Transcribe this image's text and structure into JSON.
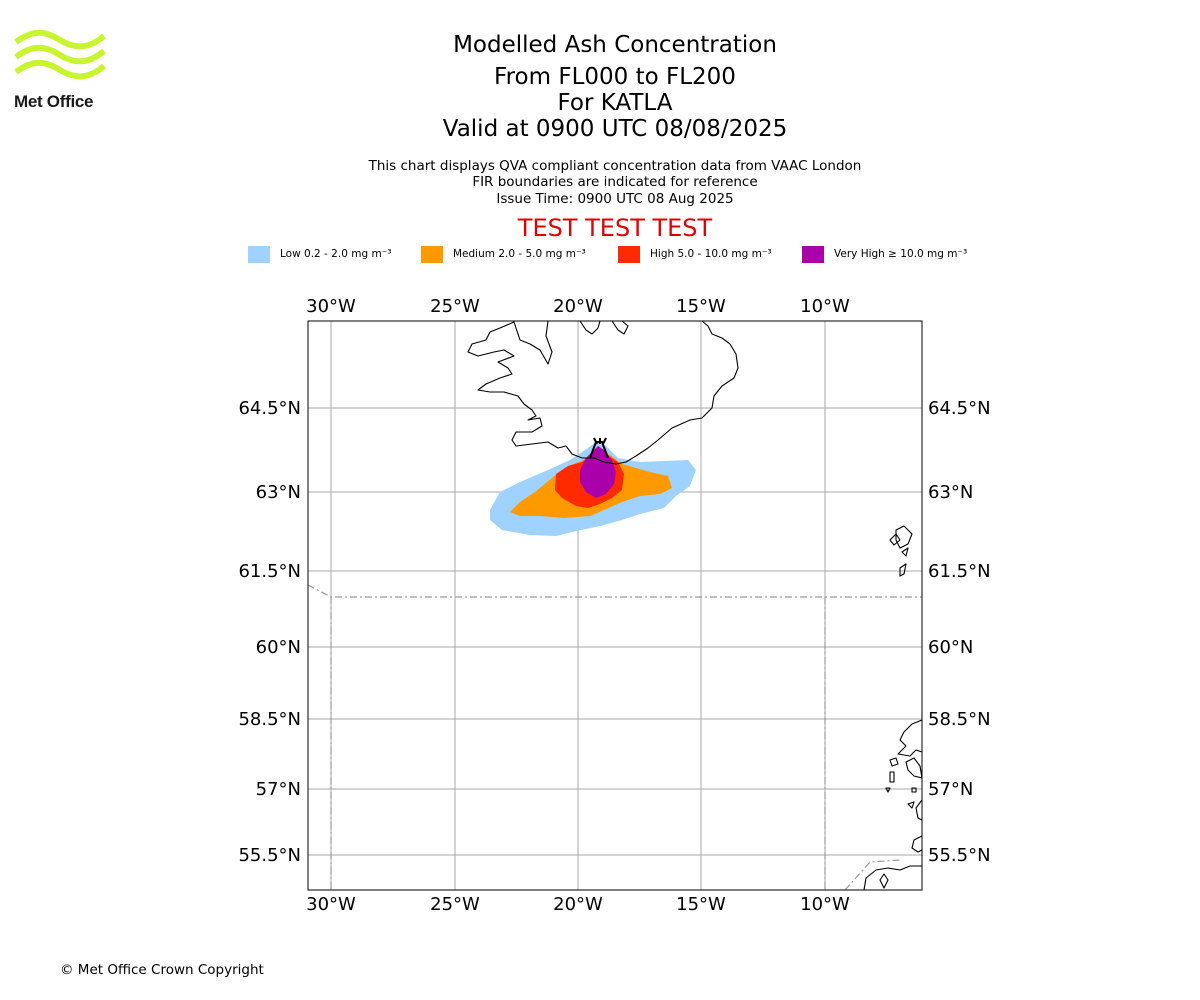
{
  "branding": {
    "logo_text": "Met Office",
    "logo_color": "#c8f52f"
  },
  "titles": {
    "main": "Modelled Ash Concentration",
    "levels": "From FL000 to FL200",
    "volcano": "For KATLA",
    "valid": "Valid at 0900 UTC 08/08/2025"
  },
  "notes": {
    "line1": "This chart displays QVA compliant concentration data from VAAC London",
    "line2": "FIR boundaries are indicated for reference",
    "line3": "Issue Time: 0900 UTC 08 Aug 2025"
  },
  "test_banner": "TEST TEST TEST",
  "legend": [
    {
      "label": "Low 0.2 - 2.0 mg m⁻³",
      "color": "#a0d2ff"
    },
    {
      "label": "Medium 2.0 - 5.0 mg m⁻³",
      "color": "#ff9900"
    },
    {
      "label": "High 5.0 - 10.0 mg m⁻³",
      "color": "#ff2a00"
    },
    {
      "label": "Very High ≥ 10.0 mg m⁻³",
      "color": "#aa00aa"
    }
  ],
  "map": {
    "lon_ticks": [
      "30°W",
      "25°W",
      "20°W",
      "15°W",
      "10°W"
    ],
    "lat_ticks": [
      "64.5°N",
      "63°N",
      "61.5°N",
      "60°N",
      "58.5°N",
      "57°N",
      "55.5°N"
    ],
    "gridline_color": "#aaaaaa",
    "fir_color": "#999999"
  },
  "copyright": "© Met Office Crown Copyright"
}
